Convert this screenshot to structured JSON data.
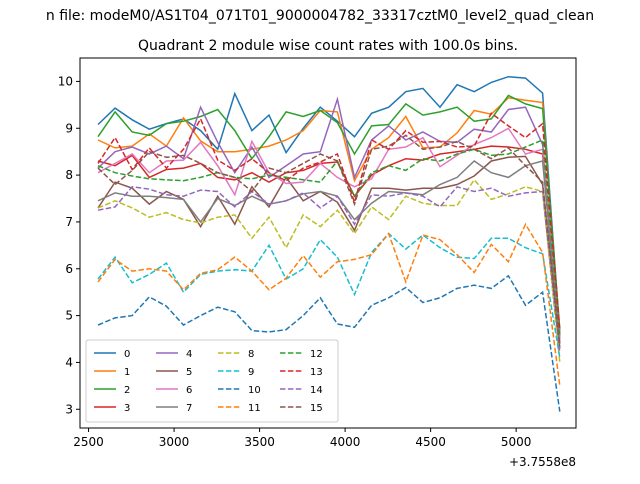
{
  "figure": {
    "suptitle": "n file: modeM0/AS1T04_071T01_9000004782_33317cztM0_level2_quad_clean",
    "offset_label": "+3.7558e8"
  },
  "chart_data": {
    "type": "line",
    "title": "Quadrant 2 module wise count rates with 100.0s bins.",
    "xlabel": "",
    "ylabel": "",
    "xlim": [
      2450,
      5350
    ],
    "ylim": [
      2.6,
      10.5
    ],
    "xticks": [
      2500,
      3000,
      3500,
      4000,
      4500,
      5000
    ],
    "yticks": [
      3,
      4,
      5,
      6,
      7,
      8,
      9,
      10
    ],
    "grid": false,
    "legend_position": "lower-left",
    "legend_columns": 4,
    "x": [
      2555,
      2655,
      2755,
      2855,
      2955,
      3055,
      3155,
      3255,
      3355,
      3455,
      3555,
      3655,
      3755,
      3855,
      3955,
      4055,
      4155,
      4255,
      4355,
      4455,
      4555,
      4655,
      4755,
      4855,
      4955,
      5055,
      5155,
      5255
    ],
    "series": [
      {
        "name": "0",
        "color": "#1f77b4",
        "dash": "solid",
        "values": [
          9.08,
          9.43,
          9.18,
          8.98,
          9.1,
          9.2,
          8.95,
          8.55,
          9.74,
          8.95,
          9.28,
          8.48,
          9.0,
          9.45,
          9.15,
          8.82,
          9.32,
          9.45,
          9.78,
          9.85,
          9.45,
          9.93,
          9.78,
          9.98,
          10.1,
          10.07,
          9.75,
          4.6
        ]
      },
      {
        "name": "1",
        "color": "#ff7f0e",
        "dash": "solid",
        "values": [
          8.75,
          8.58,
          8.62,
          8.88,
          8.62,
          9.22,
          8.73,
          8.5,
          8.5,
          8.55,
          8.62,
          8.75,
          8.95,
          9.38,
          9.35,
          7.88,
          8.55,
          8.8,
          9.25,
          8.58,
          8.6,
          8.9,
          9.38,
          9.3,
          9.65,
          9.6,
          9.55,
          4.5
        ]
      },
      {
        "name": "2",
        "color": "#2ca02c",
        "dash": "solid",
        "values": [
          8.82,
          9.35,
          8.92,
          8.85,
          9.1,
          9.15,
          9.25,
          9.4,
          8.95,
          8.35,
          8.82,
          9.35,
          9.25,
          9.38,
          9.12,
          8.45,
          9.05,
          9.08,
          9.52,
          9.28,
          9.35,
          9.45,
          9.15,
          9.2,
          9.7,
          9.52,
          9.42,
          4.7
        ]
      },
      {
        "name": "3",
        "color": "#d62728",
        "dash": "solid",
        "values": [
          8.3,
          8.2,
          8.42,
          7.95,
          8.12,
          8.15,
          8.25,
          7.95,
          7.9,
          8.05,
          7.85,
          8.05,
          8.1,
          8.25,
          8.28,
          7.55,
          8.0,
          8.2,
          8.35,
          8.32,
          8.45,
          8.5,
          8.55,
          8.62,
          8.6,
          8.55,
          8.45,
          4.4
        ]
      },
      {
        "name": "4",
        "color": "#9467bd",
        "dash": "solid",
        "values": [
          8.15,
          8.5,
          8.6,
          8.45,
          8.62,
          8.35,
          9.45,
          8.7,
          8.05,
          8.6,
          7.95,
          8.2,
          8.45,
          8.5,
          9.62,
          7.95,
          8.75,
          9.05,
          8.75,
          8.92,
          8.72,
          8.7,
          8.98,
          8.92,
          9.4,
          9.45,
          8.65,
          4.55
        ]
      },
      {
        "name": "5",
        "color": "#8c564b",
        "dash": "solid",
        "values": [
          7.3,
          7.85,
          7.72,
          7.38,
          7.65,
          7.48,
          6.9,
          7.55,
          6.95,
          7.75,
          7.32,
          7.95,
          7.45,
          7.65,
          7.42,
          6.82,
          7.72,
          7.72,
          7.68,
          7.72,
          7.72,
          7.8,
          7.98,
          8.3,
          8.38,
          8.4,
          7.8,
          4.3
        ]
      },
      {
        "name": "6",
        "color": "#e377c2",
        "dash": "solid",
        "values": [
          8.05,
          8.25,
          8.45,
          8.05,
          8.3,
          8.32,
          8.7,
          8.2,
          7.58,
          8.72,
          8.05,
          7.82,
          7.85,
          8.25,
          7.95,
          7.75,
          7.92,
          8.55,
          8.6,
          8.8,
          8.18,
          8.42,
          8.65,
          8.8,
          9.0,
          8.45,
          8.55,
          4.5
        ]
      },
      {
        "name": "7",
        "color": "#7f7f7f",
        "dash": "solid",
        "values": [
          7.45,
          7.62,
          7.55,
          7.55,
          7.52,
          7.48,
          7.0,
          7.5,
          7.35,
          7.55,
          7.38,
          7.45,
          7.6,
          7.65,
          7.55,
          7.05,
          7.4,
          7.65,
          7.62,
          7.58,
          7.8,
          7.95,
          8.3,
          8.05,
          7.95,
          8.2,
          8.3,
          4.4
        ]
      },
      {
        "name": "8",
        "color": "#bcbd22",
        "dash": "dashed",
        "values": [
          7.3,
          7.45,
          7.3,
          7.1,
          7.2,
          7.05,
          6.98,
          7.1,
          7.15,
          6.65,
          7.1,
          6.45,
          7.15,
          6.9,
          7.25,
          6.75,
          7.32,
          7.05,
          7.55,
          7.4,
          7.35,
          7.35,
          7.9,
          7.48,
          7.6,
          7.75,
          7.65,
          4.0
        ]
      },
      {
        "name": "9",
        "color": "#17becf",
        "dash": "dashed",
        "values": [
          5.78,
          6.25,
          5.7,
          5.88,
          6.12,
          5.5,
          5.88,
          5.95,
          5.98,
          5.95,
          6.5,
          5.78,
          6.0,
          6.62,
          6.25,
          5.45,
          6.35,
          6.75,
          6.42,
          6.72,
          6.45,
          6.25,
          6.22,
          6.65,
          6.65,
          6.45,
          6.32,
          4.1
        ]
      },
      {
        "name": "10",
        "color": "#1f77b4",
        "dash": "dashed",
        "values": [
          4.8,
          4.95,
          5.0,
          5.4,
          5.2,
          4.8,
          5.0,
          5.18,
          5.08,
          4.68,
          4.65,
          4.7,
          5.0,
          5.38,
          4.82,
          4.75,
          5.22,
          5.38,
          5.6,
          5.28,
          5.38,
          5.58,
          5.65,
          5.58,
          5.85,
          5.22,
          5.5,
          2.95
        ]
      },
      {
        "name": "11",
        "color": "#ff7f0e",
        "dash": "dashed",
        "values": [
          5.72,
          6.2,
          5.95,
          6.0,
          5.95,
          5.55,
          5.9,
          5.98,
          6.25,
          5.95,
          5.55,
          5.8,
          6.28,
          5.82,
          6.15,
          6.2,
          6.3,
          6.75,
          5.72,
          6.72,
          6.62,
          6.3,
          5.92,
          6.52,
          6.15,
          6.95,
          6.35,
          3.5
        ]
      },
      {
        "name": "12",
        "color": "#2ca02c",
        "dash": "dashed",
        "values": [
          8.2,
          8.05,
          7.98,
          7.92,
          7.9,
          7.88,
          7.95,
          8.05,
          7.95,
          7.92,
          8.0,
          7.95,
          7.9,
          7.85,
          8.3,
          7.55,
          8.05,
          8.2,
          8.1,
          8.35,
          8.3,
          8.45,
          8.55,
          8.42,
          8.45,
          8.6,
          8.75,
          4.6
        ]
      },
      {
        "name": "13",
        "color": "#d62728",
        "dash": "dashed",
        "values": [
          8.25,
          8.8,
          8.12,
          8.58,
          8.15,
          8.55,
          9.2,
          8.32,
          8.1,
          8.35,
          8.05,
          7.88,
          8.15,
          8.28,
          8.45,
          7.42,
          8.75,
          8.55,
          8.95,
          8.7,
          8.72,
          8.6,
          8.62,
          9.32,
          9.05,
          8.8,
          9.1,
          4.7
        ]
      },
      {
        "name": "14",
        "color": "#9467bd",
        "dash": "dashed",
        "values": [
          7.25,
          7.32,
          7.75,
          7.7,
          7.58,
          7.55,
          7.68,
          7.65,
          7.32,
          7.65,
          7.38,
          7.45,
          7.62,
          7.3,
          7.55,
          6.95,
          7.58,
          7.55,
          7.62,
          7.55,
          7.32,
          7.75,
          7.65,
          7.72,
          7.55,
          7.62,
          7.65,
          4.2
        ]
      },
      {
        "name": "15",
        "color": "#8c564b",
        "dash": "dashed",
        "values": [
          8.15,
          7.8,
          8.1,
          8.5,
          8.38,
          8.42,
          8.25,
          8.05,
          7.95,
          7.65,
          8.15,
          8.05,
          8.25,
          8.45,
          8.3,
          7.38,
          8.55,
          8.62,
          8.85,
          8.55,
          8.6,
          8.72,
          8.55,
          8.35,
          8.58,
          8.2,
          7.85,
          4.35
        ]
      }
    ]
  }
}
